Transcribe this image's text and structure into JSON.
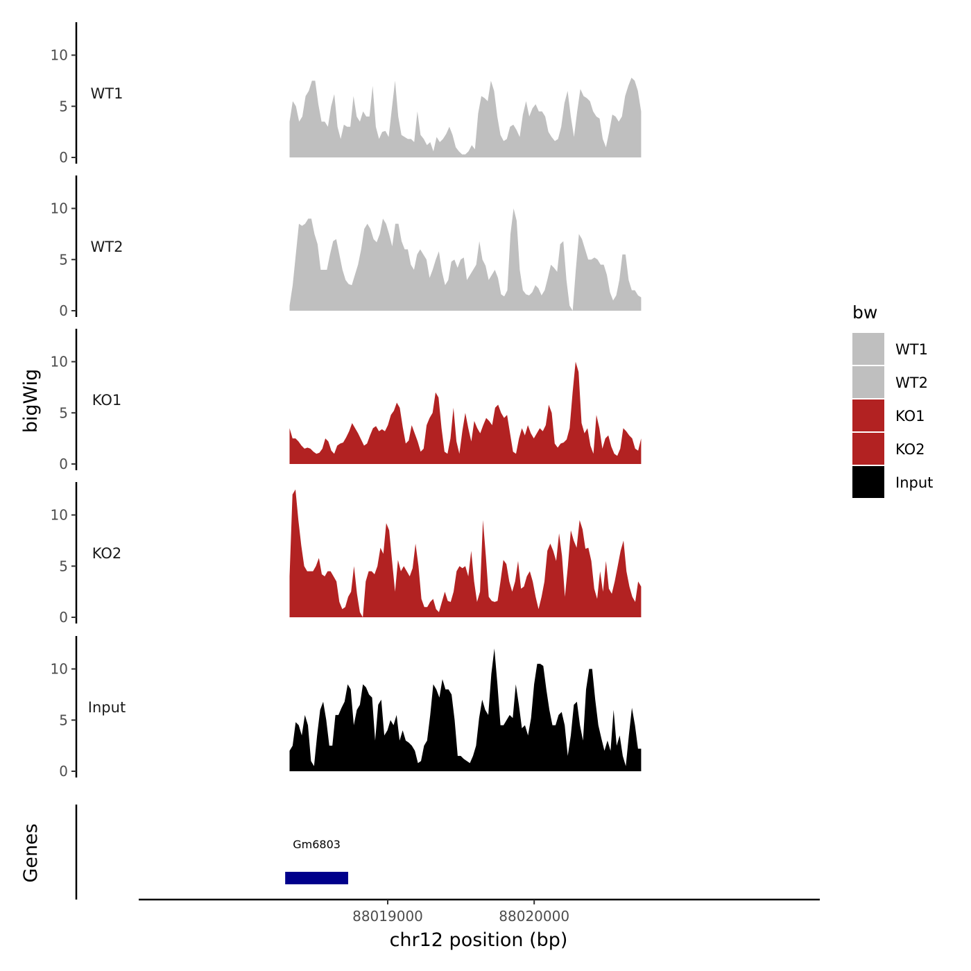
{
  "chart_data": {
    "type": "area",
    "title": "",
    "xlabel": "chr12 position (bp)",
    "ylabel": "bigWig",
    "genes_label": "Genes",
    "xlim": [
      88017300,
      88021950
    ],
    "ylim": [
      0,
      13
    ],
    "x_ticks": [
      88019000,
      88020000
    ],
    "x_tick_labels": [
      "88019000",
      "88020000"
    ],
    "y_ticks": [
      0,
      5,
      10
    ],
    "y_tick_labels": [
      "0",
      "5",
      "10"
    ],
    "region": [
      88018330,
      88020730
    ],
    "legend": {
      "title": "bw",
      "position": "right",
      "entries": [
        {
          "label": "WT1",
          "color": "#bfbfbf"
        },
        {
          "label": "WT2",
          "color": "#bfbfbf"
        },
        {
          "label": "KO1",
          "color": "#b22222"
        },
        {
          "label": "KO2",
          "color": "#b22222"
        },
        {
          "label": "Input",
          "color": "#000000"
        }
      ]
    },
    "series": [
      {
        "name": "WT1",
        "color": "#bfbfbf",
        "values": [
          3.5,
          5.5,
          5,
          3.5,
          4,
          6,
          6.5,
          7.5,
          7.5,
          5.2,
          3.5,
          3.5,
          3,
          5,
          6.2,
          3,
          1.8,
          3.2,
          3,
          3,
          6,
          4,
          3.5,
          4.5,
          4,
          4,
          7,
          3,
          1.8,
          2.5,
          2.6,
          2,
          4.8,
          7.5,
          4,
          2.2,
          2,
          1.8,
          1.8,
          1.5,
          4.5,
          2.2,
          1.8,
          1.2,
          1.5,
          0.6,
          2,
          1.5,
          1.8,
          2.3,
          3,
          2.2,
          1,
          0.6,
          0.3,
          0.3,
          0.6,
          1.2,
          0.8,
          4.3,
          6,
          5.8,
          5.5,
          7.5,
          6.5,
          4,
          2.2,
          1.6,
          1.8,
          3,
          3.2,
          2.7,
          2,
          4.2,
          5.5,
          4,
          4.8,
          5.2,
          4.5,
          4.5,
          4,
          2.5,
          2,
          1.6,
          1.8,
          3,
          5.3,
          6.5,
          4,
          2,
          4.5,
          6.7,
          6,
          5.8,
          5.5,
          4.5,
          4,
          3.8,
          1.8,
          1,
          2.5,
          4.2,
          4,
          3.5,
          4,
          6,
          7,
          7.8,
          7.5,
          6.5,
          4.5
        ]
      },
      {
        "name": "WT2",
        "color": "#bfbfbf",
        "values": [
          0.5,
          2.5,
          5.5,
          8.5,
          8.3,
          8.5,
          9,
          9,
          7.5,
          6.5,
          4,
          4,
          4,
          5.5,
          6.8,
          7,
          5.5,
          4,
          3,
          2.6,
          2.5,
          3.5,
          4.5,
          6,
          8,
          8.5,
          8,
          7,
          6.7,
          7.5,
          9,
          8.5,
          7.5,
          6.3,
          8.5,
          8.5,
          6.8,
          6,
          6,
          4.5,
          4,
          5.5,
          6,
          5.5,
          5,
          3.2,
          4,
          5,
          5.8,
          3.8,
          2.5,
          3,
          4.8,
          5,
          4.2,
          5,
          5.2,
          3,
          3.5,
          4,
          4.5,
          6.8,
          5,
          4.4,
          3,
          3.5,
          4,
          3.2,
          1.6,
          1.4,
          2,
          7.5,
          10,
          8.8,
          4,
          2,
          1.6,
          1.5,
          1.8,
          2.5,
          2.2,
          1.5,
          2,
          3.2,
          4.5,
          4.2,
          3.8,
          6.5,
          6.8,
          3,
          0.5,
          0,
          4,
          7.5,
          7,
          6,
          5,
          5,
          5.2,
          5,
          4.5,
          4.5,
          3.5,
          1.8,
          1,
          1.5,
          3,
          5.5,
          5.5,
          3,
          2,
          2,
          1.5,
          1.3
        ]
      },
      {
        "name": "KO1",
        "color": "#b22222",
        "values": [
          3.5,
          2.5,
          2.5,
          2.2,
          1.8,
          1.5,
          1.6,
          1.5,
          1.2,
          1,
          1.1,
          1.5,
          2.5,
          2.2,
          1.3,
          1,
          1.8,
          2,
          2.1,
          2.6,
          3.2,
          4,
          3.5,
          3,
          2.4,
          1.8,
          2,
          2.8,
          3.5,
          3.7,
          3.2,
          3.4,
          3.2,
          3.8,
          4.8,
          5.2,
          6,
          5.5,
          3.6,
          2,
          2.3,
          3.8,
          3,
          2.2,
          1.2,
          1.5,
          3.8,
          4.5,
          5,
          7,
          6.5,
          3.5,
          1.2,
          1,
          2.5,
          5.5,
          2.2,
          1,
          3.2,
          5,
          3.5,
          2.2,
          4.2,
          3.5,
          3,
          3.8,
          4.5,
          4.2,
          3.8,
          5.5,
          5.8,
          5,
          4.5,
          4.8,
          3,
          1.2,
          1,
          2.5,
          3.5,
          2.8,
          3.8,
          3,
          2.5,
          3,
          3.5,
          3.2,
          3.8,
          5.8,
          5,
          2,
          1.6,
          2,
          2.1,
          2.4,
          3.5,
          7,
          10,
          9,
          4,
          3,
          3.5,
          1.8,
          1,
          4.8,
          3.5,
          1.5,
          2.5,
          2.8,
          1.7,
          1,
          0.8,
          1.5,
          3.5,
          3.2,
          2.8,
          2.5,
          1.5,
          1.3,
          2.5
        ]
      },
      {
        "name": "KO2",
        "color": "#b22222",
        "values": [
          4,
          12,
          12.5,
          9.5,
          7,
          5,
          4.5,
          4.5,
          4.5,
          5,
          5.8,
          4.2,
          4,
          4.5,
          4.5,
          4,
          3.5,
          1.5,
          0.8,
          1,
          2,
          2.5,
          5,
          2.3,
          0.5,
          0,
          3.5,
          4.5,
          4.5,
          4.2,
          5,
          6.8,
          6.2,
          9.2,
          8.5,
          5.5,
          2.5,
          5.6,
          4.5,
          5,
          4.5,
          4,
          4.8,
          7.2,
          5,
          1.8,
          1,
          1,
          1.5,
          1.8,
          0.8,
          0.5,
          1.5,
          2.5,
          1.6,
          1.5,
          2.5,
          4.5,
          5,
          4.8,
          5,
          4,
          6.5,
          3.5,
          1.5,
          2.5,
          9.5,
          6,
          2,
          1.6,
          1.5,
          1.6,
          3.5,
          5.6,
          5.2,
          3.5,
          2.5,
          3.5,
          5.5,
          2.8,
          3,
          4,
          4.5,
          3.5,
          2,
          0.8,
          2,
          3.5,
          6.5,
          7.2,
          6.5,
          5.5,
          8.2,
          6,
          2,
          5,
          8.5,
          7.5,
          6.8,
          9.5,
          8.6,
          6.7,
          6.8,
          5.5,
          2.8,
          1.8,
          4.5,
          2.5,
          5.5,
          2.8,
          2.3,
          3.5,
          5,
          6.5,
          7.5,
          4.5,
          3,
          2,
          1.5,
          3.5,
          3
        ]
      },
      {
        "name": "Input",
        "color": "#000000",
        "values": [
          2,
          2.5,
          4.8,
          4.5,
          3.5,
          5.5,
          4.5,
          1,
          0.5,
          3.5,
          6,
          6.8,
          5,
          2.5,
          2.5,
          5.5,
          5.5,
          6.2,
          6.8,
          8.5,
          8,
          4.5,
          6,
          6.5,
          8.5,
          8.2,
          7.5,
          7.2,
          3,
          6.5,
          7,
          3.5,
          4,
          5,
          4.5,
          5.5,
          3,
          4,
          3,
          2.8,
          2.5,
          2,
          0.8,
          1,
          2.5,
          3,
          5.5,
          8.5,
          8,
          7.2,
          9,
          8,
          8,
          7.5,
          5,
          1.5,
          1.5,
          1.2,
          1,
          0.8,
          1.5,
          2.5,
          5.2,
          7,
          6,
          5.5,
          9.5,
          12,
          8.5,
          4.5,
          4.5,
          5,
          5.5,
          5.2,
          8.5,
          6.5,
          4.2,
          4.5,
          3.5,
          5.2,
          8.5,
          10.5,
          10.5,
          10.3,
          8,
          6,
          4.5,
          4.5,
          5.5,
          5.8,
          4.5,
          1.5,
          3.5,
          6.5,
          6.8,
          4.5,
          3,
          8,
          10,
          10,
          7,
          4.5,
          3.2,
          2,
          3,
          2,
          6,
          2.5,
          3.5,
          1.5,
          0.5,
          3.5,
          6.2,
          4.5,
          2.2,
          2.2
        ]
      }
    ],
    "genes": [
      {
        "name": "Gm6803",
        "start": 88018300,
        "end": 88018730,
        "color": "#00008b"
      }
    ]
  }
}
